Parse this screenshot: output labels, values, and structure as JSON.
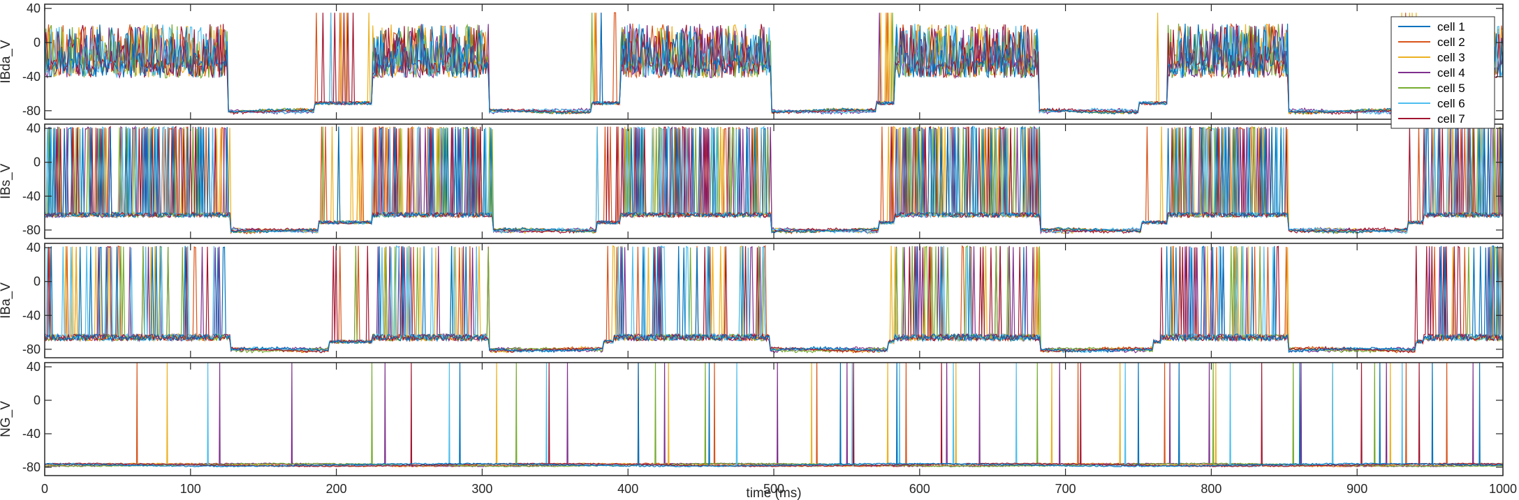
{
  "chart_data": {
    "type": "line",
    "xlabel": "time (ms)",
    "xlim": [
      0,
      1000
    ],
    "xticks": [
      0,
      100,
      200,
      300,
      400,
      500,
      600,
      700,
      800,
      900,
      1000
    ],
    "yticks": [
      -80,
      -40,
      0,
      40
    ],
    "ylim": [
      -90,
      45
    ],
    "grid": false,
    "legend": {
      "placement": "top-right",
      "panel": 0
    },
    "colors": [
      "#0072BD",
      "#D95319",
      "#EDB120",
      "#7E2F8E",
      "#77AC30",
      "#4DBEEE",
      "#A2142F"
    ],
    "series": [
      {
        "name": "cell 1"
      },
      {
        "name": "cell 2"
      },
      {
        "name": "cell 3"
      },
      {
        "name": "cell 4"
      },
      {
        "name": "cell 5"
      },
      {
        "name": "cell 6"
      },
      {
        "name": "cell 7"
      }
    ],
    "panels": [
      {
        "ylabel": "IBda_V",
        "kind": "bursting-dense",
        "active_windows": [
          [
            0,
            126
          ],
          [
            225,
            305
          ],
          [
            395,
            498
          ],
          [
            583,
            682
          ],
          [
            770,
            853
          ],
          [
            945,
            1000
          ]
        ],
        "early_spikes": [
          [
            185,
            225
          ],
          [
            375,
            395
          ],
          [
            570,
            583
          ],
          [
            750,
            770
          ],
          [
            930,
            945
          ]
        ],
        "rest_potential": -83,
        "active_range": [
          -50,
          35
        ]
      },
      {
        "ylabel": "IBs_V",
        "kind": "spiking-dense",
        "active_windows": [
          [
            0,
            127
          ],
          [
            225,
            307
          ],
          [
            395,
            498
          ],
          [
            583,
            683
          ],
          [
            770,
            853
          ],
          [
            945,
            1000
          ]
        ],
        "early_spikes": [
          [
            188,
            225
          ],
          [
            378,
            395
          ],
          [
            572,
            583
          ],
          [
            752,
            770
          ],
          [
            935,
            945
          ]
        ],
        "rest_potential": -83,
        "active_range": [
          -65,
          42
        ]
      },
      {
        "ylabel": "IBa_V",
        "kind": "spiking",
        "active_windows": [
          [
            0,
            127
          ],
          [
            225,
            305
          ],
          [
            390,
            497
          ],
          [
            583,
            683
          ],
          [
            765,
            853
          ],
          [
            945,
            1000
          ]
        ],
        "early_spikes": [
          [
            195,
            225
          ],
          [
            383,
            390
          ],
          [
            578,
            583
          ],
          [
            760,
            765
          ],
          [
            940,
            945
          ]
        ],
        "rest_potential": -83,
        "active_range": [
          -70,
          42
        ]
      },
      {
        "ylabel": "NG_V",
        "kind": "sparse-spikes",
        "rest_potential": -78,
        "spike_rate_start": 0.05,
        "spike_rate_end": 1.0
      }
    ]
  }
}
